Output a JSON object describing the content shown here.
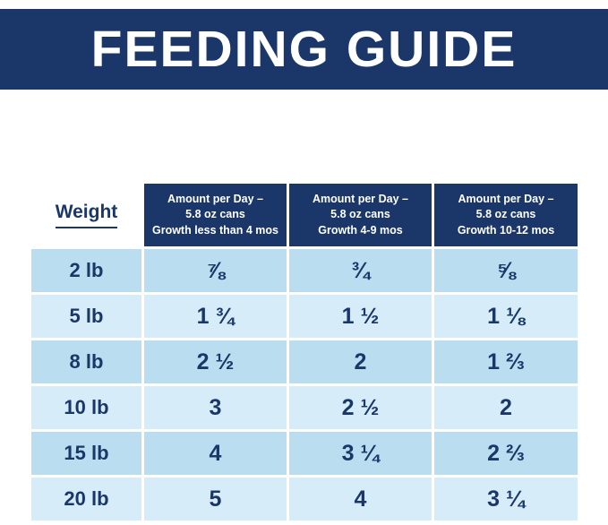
{
  "banner": {
    "title": "FEEDING GUIDE"
  },
  "table": {
    "weight_header": "Weight",
    "column_headers": [
      {
        "line1": "Amount per Day –",
        "line2": "5.8 oz cans",
        "line3": "Growth less than 4 mos"
      },
      {
        "line1": "Amount per Day –",
        "line2": "5.8 oz cans",
        "line3": "Growth 4-9 mos"
      },
      {
        "line1": "Amount per Day –",
        "line2": "5.8 oz cans",
        "line3": "Growth 10-12 mos"
      }
    ],
    "rows": [
      {
        "weight": "2 lb",
        "values": [
          "⅞",
          "¾",
          "⅝"
        ]
      },
      {
        "weight": "5 lb",
        "values": [
          "1 ¾",
          "1 ½",
          "1 ⅛"
        ]
      },
      {
        "weight": "8 lb",
        "values": [
          "2 ½",
          "2",
          "1 ⅔"
        ]
      },
      {
        "weight": "10 lb",
        "values": [
          "3",
          "2 ½",
          "2"
        ]
      },
      {
        "weight": "15 lb",
        "values": [
          "4",
          "3 ¼",
          "2 ⅔"
        ]
      },
      {
        "weight": "20 lb",
        "values": [
          "5",
          "4",
          "3 ¼"
        ]
      }
    ]
  },
  "colors": {
    "navy": "#1b3769",
    "row_shade_dark": "#badef0",
    "row_shade_light": "#d6edf9",
    "grid_line": "#ffffff",
    "header_text": "#ffffff"
  },
  "chart_data": {
    "type": "table",
    "title": "FEEDING GUIDE",
    "columns": [
      "Weight",
      "Amount per Day – 5.8 oz cans Growth less than 4 mos",
      "Amount per Day – 5.8 oz cans Growth 4-9 mos",
      "Amount per Day – 5.8 oz cans Growth 10-12 mos"
    ],
    "rows": [
      [
        "2 lb",
        "7/8",
        "3/4",
        "5/8"
      ],
      [
        "5 lb",
        "1 3/4",
        "1 1/2",
        "1 1/8"
      ],
      [
        "8 lb",
        "2 1/2",
        "2",
        "1 2/3"
      ],
      [
        "10 lb",
        "3",
        "2 1/2",
        "2"
      ],
      [
        "15 lb",
        "4",
        "3 1/4",
        "2 2/3"
      ],
      [
        "20 lb",
        "5",
        "4",
        "3 1/4"
      ]
    ],
    "layout": {
      "legend": "none",
      "grid": "white 3px cell separators",
      "row_striping": "alternating light blue"
    }
  }
}
